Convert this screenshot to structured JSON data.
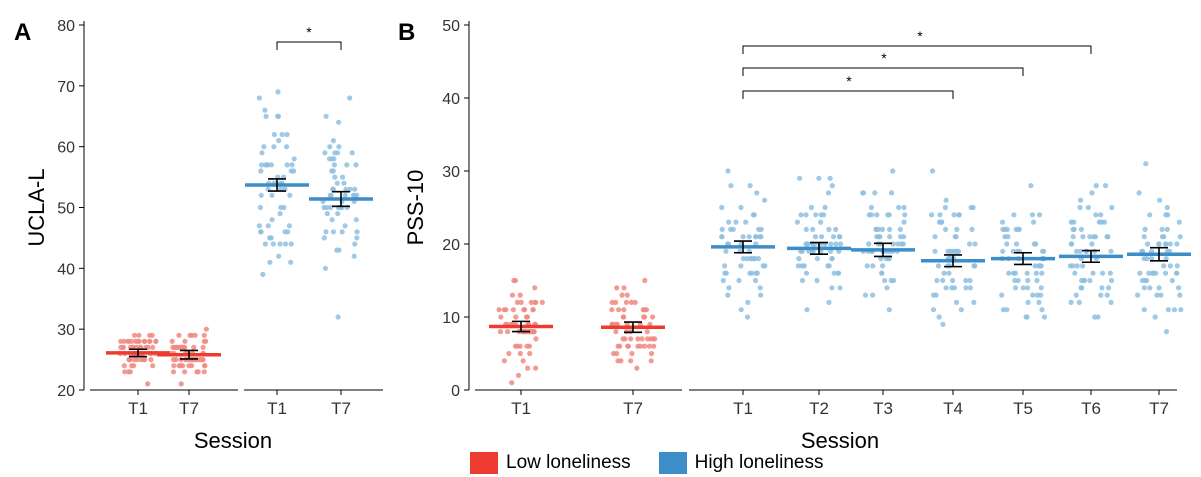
{
  "colors": {
    "low": "#EE3B2F",
    "high": "#3C8DC8",
    "lowDot": "#F08A83",
    "highDot": "#8EBFE0"
  },
  "legend": {
    "low_label": "Low loneliness",
    "high_label": "High loneliness"
  },
  "chart_data": [
    {
      "panel_label": "A",
      "type": "scatter",
      "ylabel": "UCLA-L",
      "xlabel": "Session",
      "ylim": [
        20,
        80
      ],
      "yticks": [
        20,
        30,
        40,
        50,
        60,
        70,
        80
      ],
      "groups": [
        {
          "group": "Low loneliness",
          "sessions": [
            "T1",
            "T7"
          ],
          "means": [
            26.1,
            25.8
          ],
          "se": [
            0.6,
            0.7
          ]
        },
        {
          "group": "High loneliness",
          "sessions": [
            "T1",
            "T7"
          ],
          "means": [
            53.7,
            51.4
          ],
          "se": [
            1.0,
            1.2
          ]
        }
      ],
      "significance": [
        {
          "group": "High loneliness",
          "from": "T1",
          "to": "T7",
          "label": "*"
        }
      ]
    },
    {
      "panel_label": "B",
      "type": "scatter",
      "ylabel": "PSS-10",
      "xlabel": "Session",
      "ylim": [
        0,
        50
      ],
      "yticks": [
        0,
        10,
        20,
        30,
        40,
        50
      ],
      "groups": [
        {
          "group": "Low loneliness",
          "sessions": [
            "T1",
            "T7"
          ],
          "means": [
            8.7,
            8.6
          ],
          "se": [
            0.7,
            0.7
          ]
        },
        {
          "group": "High loneliness",
          "sessions": [
            "T1",
            "T2",
            "T3",
            "T4",
            "T5",
            "T6",
            "T7"
          ],
          "means": [
            19.6,
            19.4,
            19.2,
            17.7,
            18.0,
            18.3,
            18.6
          ],
          "se": [
            0.8,
            0.8,
            0.9,
            0.8,
            0.8,
            0.8,
            0.9
          ]
        }
      ],
      "significance": [
        {
          "group": "High loneliness",
          "from": "T1",
          "to": "T4",
          "label": "*"
        },
        {
          "group": "High loneliness",
          "from": "T1",
          "to": "T5",
          "label": "*"
        },
        {
          "group": "High loneliness",
          "from": "T1",
          "to": "T6",
          "label": "*"
        }
      ]
    }
  ]
}
